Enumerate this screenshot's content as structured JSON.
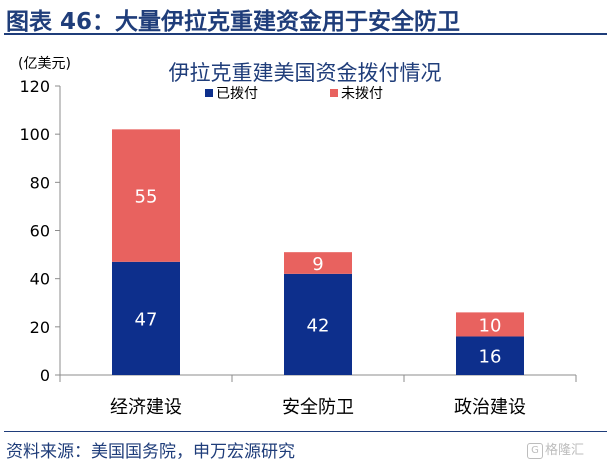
{
  "header": {
    "title": "图表 46：大量伊拉克重建资金用于安全防卫"
  },
  "footer": {
    "source": "资料来源：美国国务院，申万宏源研究",
    "watermark": "格隆汇"
  },
  "chart_data": {
    "type": "bar",
    "stacked": true,
    "title": "伊拉克重建美国资金拨付情况",
    "ylabel": "(亿美元)",
    "categories": [
      "经济建设",
      "安全防卫",
      "政治建设"
    ],
    "series": [
      {
        "name": "已拨付",
        "values": [
          47,
          42,
          16
        ],
        "color": "#0d2f8c"
      },
      {
        "name": "未拨付",
        "values": [
          55,
          9,
          10
        ],
        "color": "#e8625f"
      }
    ],
    "ylim": [
      0,
      120
    ],
    "yticks": [
      0,
      20,
      40,
      60,
      80,
      100,
      120
    ],
    "grid": false,
    "legend": "top"
  }
}
